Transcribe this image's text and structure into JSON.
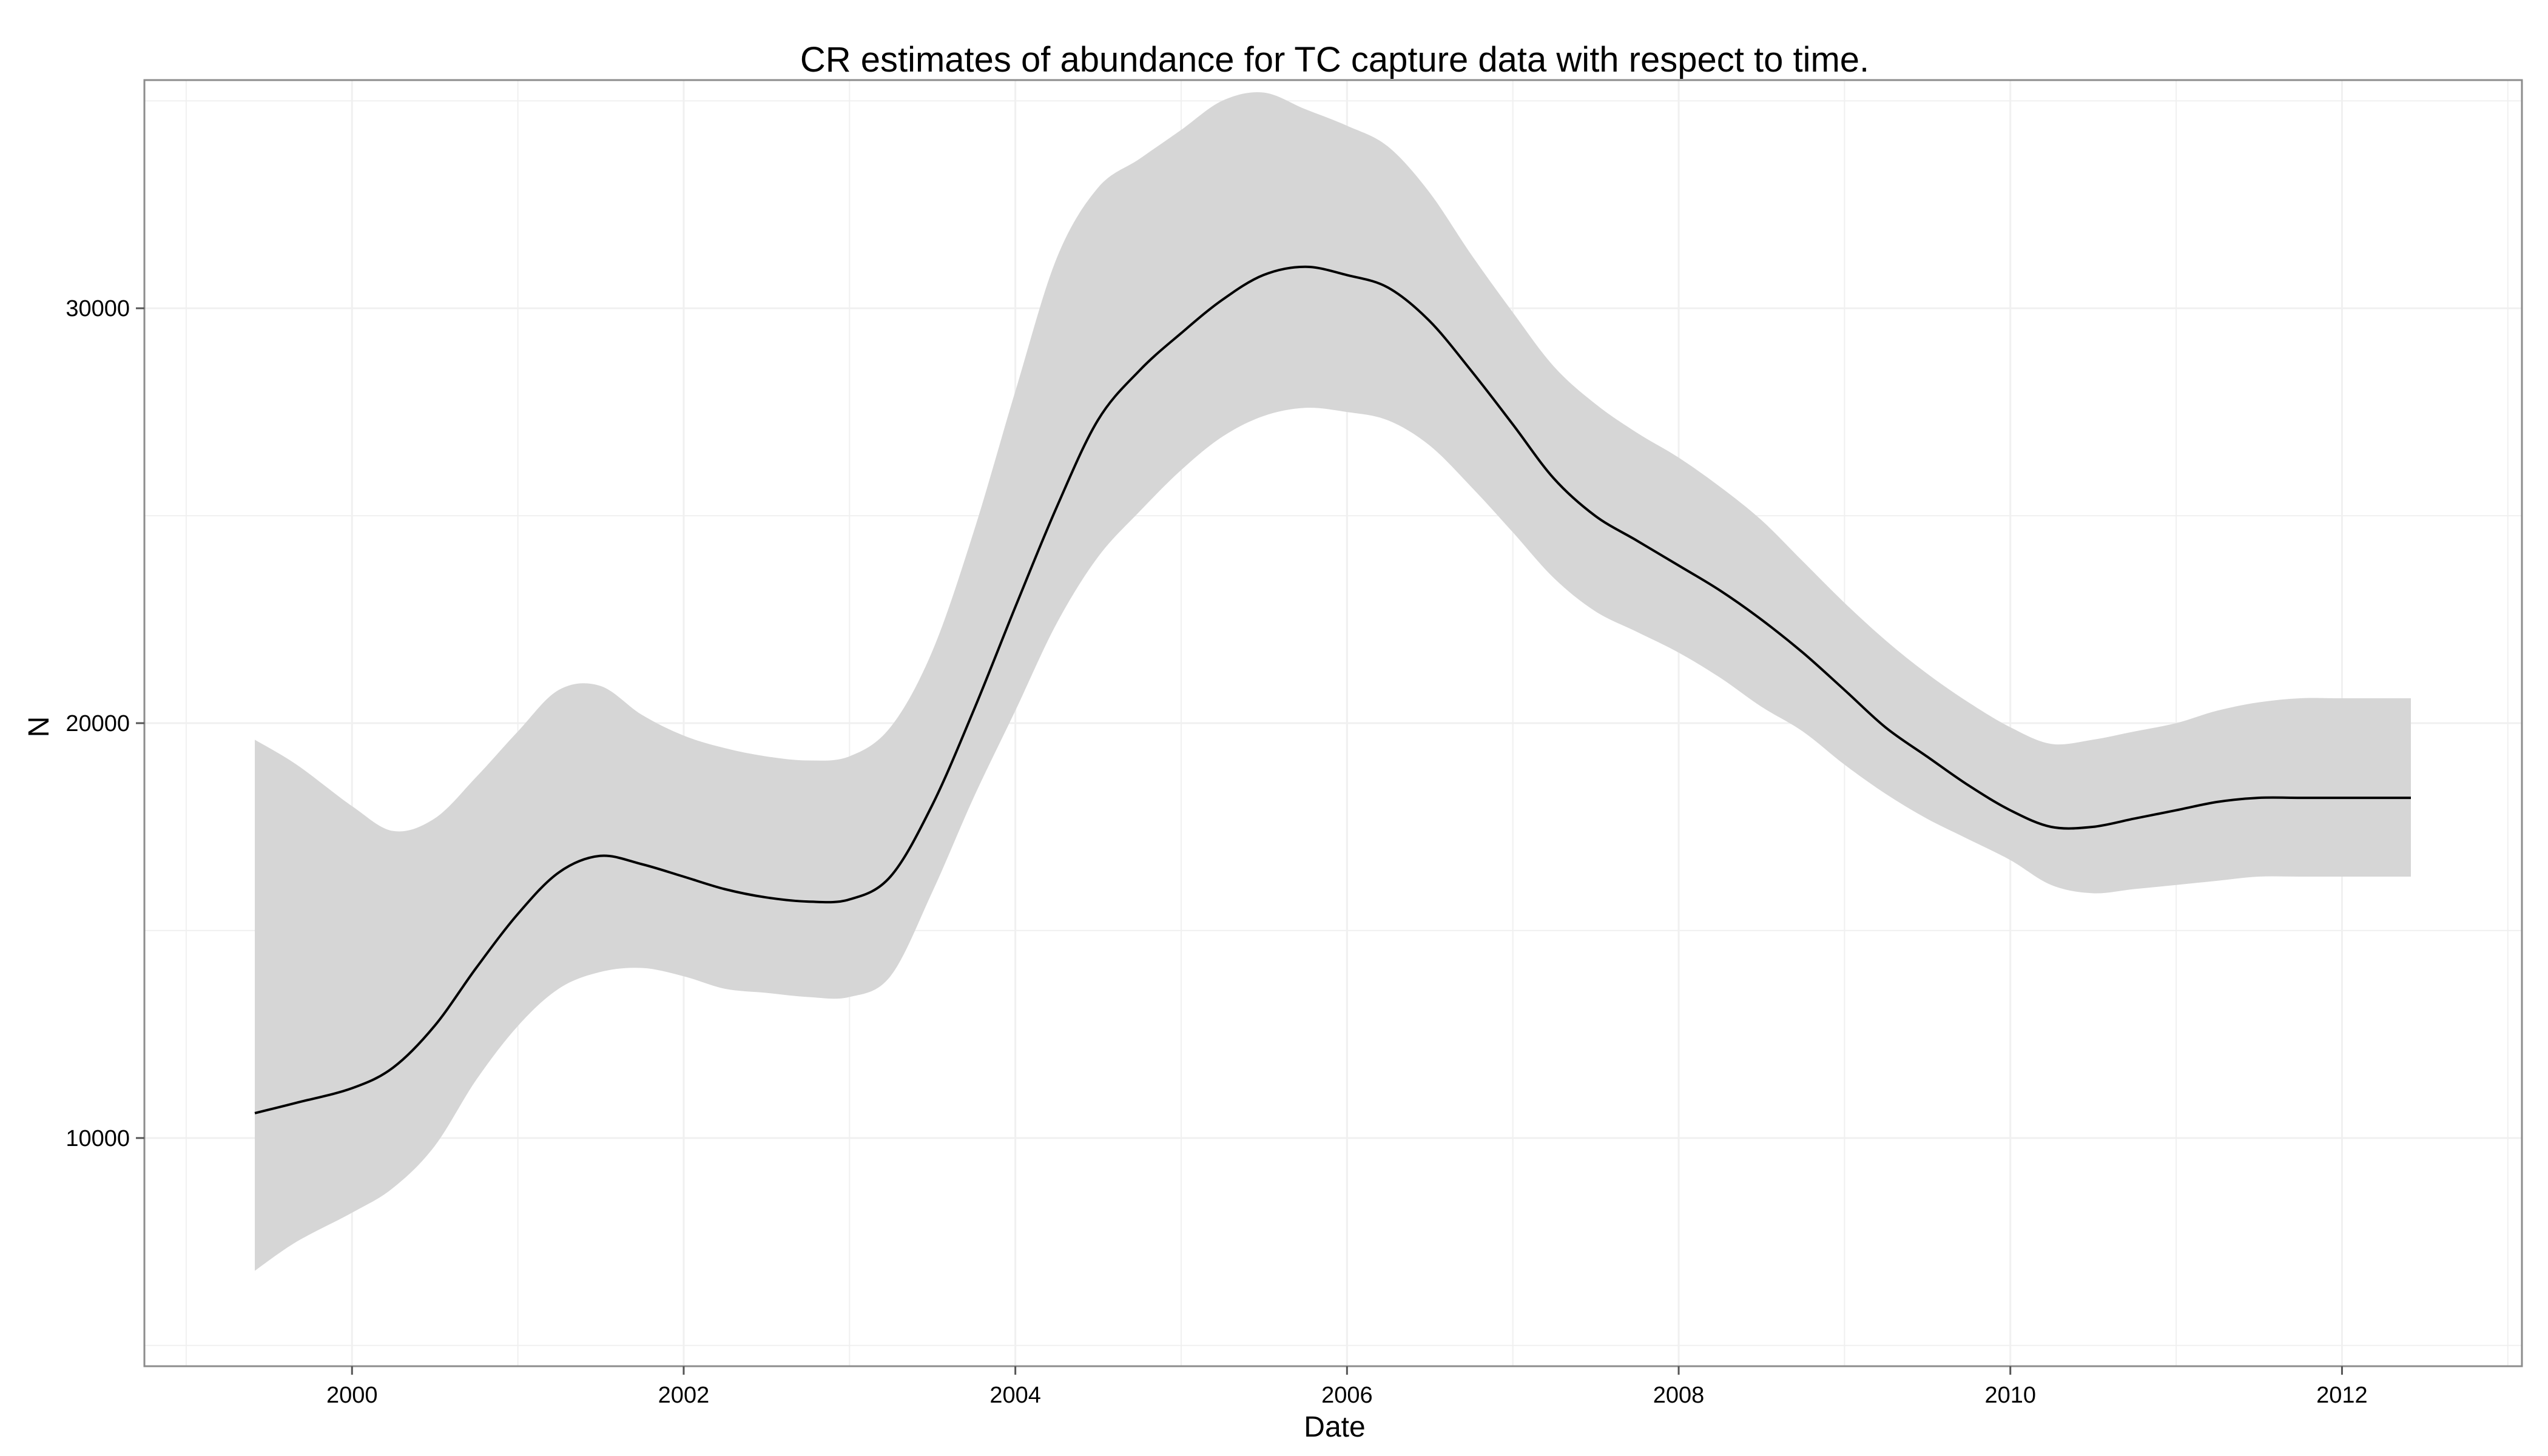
{
  "chart_data": {
    "type": "line",
    "title": "CR estimates of abundance for TC capture data with respect to time.",
    "xlabel": "Date",
    "ylabel": "N",
    "xlim": [
      "1998-10-01",
      "2013-02-01"
    ],
    "ylim": [
      4500,
      35500
    ],
    "grid": true,
    "legend": "none",
    "colors": {
      "line": "#000000",
      "ribbon": "#d6d6d6",
      "panel_border": "#8c8c8c",
      "grid": "#f0f0f0",
      "axis": "#555555"
    },
    "x_ticks": [
      {
        "value": "2000-01-01",
        "label": "2000"
      },
      {
        "value": "2002-01-01",
        "label": "2002"
      },
      {
        "value": "2004-01-01",
        "label": "2004"
      },
      {
        "value": "2006-01-01",
        "label": "2006"
      },
      {
        "value": "2008-01-01",
        "label": "2008"
      },
      {
        "value": "2010-01-01",
        "label": "2010"
      },
      {
        "value": "2012-01-01",
        "label": "2012"
      }
    ],
    "y_ticks": [
      {
        "value": 10000,
        "label": "10000"
      },
      {
        "value": 20000,
        "label": "20000"
      },
      {
        "value": 30000,
        "label": "30000"
      }
    ],
    "series": [
      {
        "x": [
          "1999-06-01",
          "1999-09-01",
          "2000-01-01",
          "2000-04-01",
          "2000-07-01",
          "2000-10-01",
          "2001-01-01",
          "2001-04-01",
          "2001-07-01",
          "2001-10-01",
          "2002-01-01",
          "2002-04-01",
          "2002-07-01",
          "2002-10-01",
          "2003-01-01",
          "2003-04-01",
          "2003-07-01",
          "2003-10-01",
          "2004-01-01",
          "2004-04-01",
          "2004-07-01",
          "2004-10-01",
          "2005-01-01",
          "2005-04-01",
          "2005-07-01",
          "2005-10-01",
          "2006-01-01",
          "2006-04-01",
          "2006-07-01",
          "2006-10-01",
          "2007-01-01",
          "2007-04-01",
          "2007-07-01",
          "2007-10-01",
          "2008-01-01",
          "2008-04-01",
          "2008-07-01",
          "2008-10-01",
          "2009-01-01",
          "2009-04-01",
          "2009-07-01",
          "2009-10-01",
          "2010-01-01",
          "2010-04-01",
          "2010-07-01",
          "2010-10-01",
          "2011-01-01",
          "2011-04-01",
          "2011-07-01",
          "2011-10-01",
          "2012-01-01",
          "2012-06-01"
        ],
        "y": [
          10600,
          10850,
          11200,
          11700,
          12700,
          14100,
          15400,
          16400,
          16800,
          16600,
          16300,
          16000,
          15800,
          15700,
          15750,
          16300,
          18000,
          20300,
          22800,
          25200,
          27300,
          28500,
          29400,
          30200,
          30800,
          31000,
          30800,
          30500,
          29700,
          28500,
          27200,
          25900,
          25000,
          24400,
          23800,
          23200,
          22500,
          21700,
          20800,
          19900,
          19200,
          18500,
          17900,
          17500,
          17500,
          17700,
          17900,
          18100,
          18200,
          18200,
          18200,
          18200
        ],
        "lower": [
          6800,
          7500,
          8200,
          8800,
          9800,
          11400,
          12700,
          13600,
          14000,
          14100,
          13900,
          13600,
          13500,
          13400,
          13400,
          13900,
          15900,
          18200,
          20300,
          22400,
          24000,
          25100,
          26100,
          26900,
          27400,
          27600,
          27500,
          27300,
          26700,
          25700,
          24600,
          23500,
          22700,
          22200,
          21700,
          21100,
          20400,
          19800,
          19000,
          18300,
          17700,
          17200,
          16700,
          16100,
          15900,
          16000,
          16100,
          16200,
          16300,
          16300,
          16300,
          16300
        ],
        "upper": [
          19600,
          19000,
          18000,
          17400,
          17700,
          18700,
          19800,
          20800,
          20900,
          20200,
          19700,
          19400,
          19200,
          19100,
          19200,
          19900,
          21700,
          24600,
          28000,
          31200,
          32900,
          33600,
          34300,
          35000,
          35200,
          34800,
          34400,
          33900,
          32800,
          31300,
          29900,
          28600,
          27700,
          27000,
          26400,
          25700,
          24900,
          23900,
          22900,
          22000,
          21200,
          20500,
          19900,
          19500,
          19600,
          19800,
          20000,
          20300,
          20500,
          20600,
          20600,
          20600
        ]
      }
    ]
  }
}
